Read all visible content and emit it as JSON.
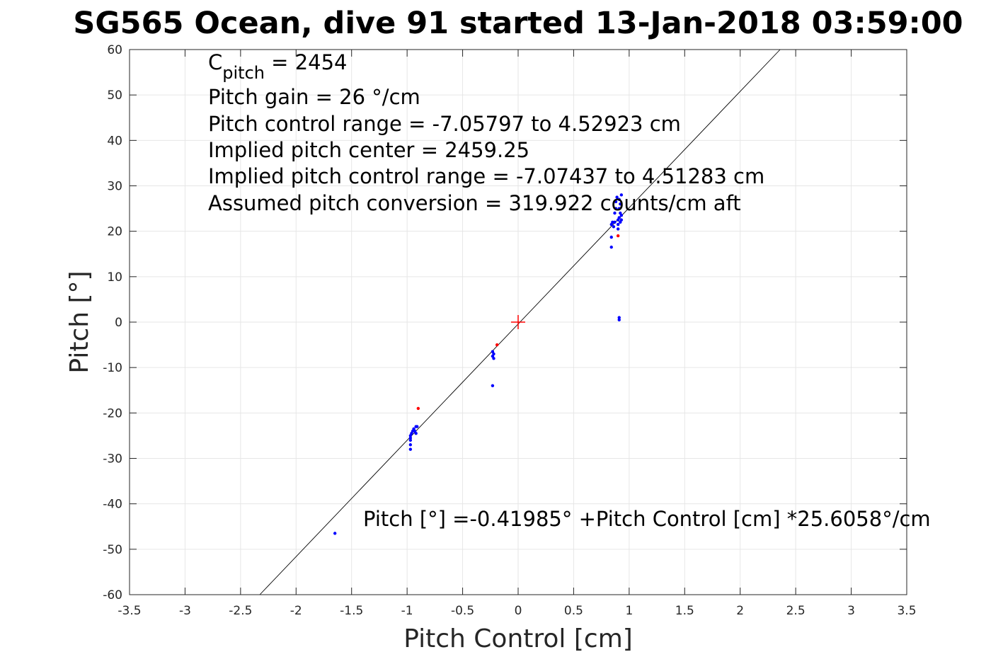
{
  "chart_data": {
    "type": "scatter",
    "title": "SG565 Ocean, dive 91 started 13-Jan-2018 03:59:00",
    "xlabel": "Pitch Control [cm]",
    "ylabel": "Pitch [°]",
    "xlim": [
      -3.5,
      3.5
    ],
    "ylim": [
      -60,
      60
    ],
    "xticks": [
      -3.5,
      -3,
      -2.5,
      -2,
      -1.5,
      -1,
      -0.5,
      0,
      0.5,
      1,
      1.5,
      2,
      2.5,
      3,
      3.5
    ],
    "xtick_labels": [
      "-3.5",
      "-3",
      "-2.5",
      "-2",
      "-1.5",
      "-1",
      "-0.5",
      "0",
      "0.5",
      "1",
      "1.5",
      "2",
      "2.5",
      "3",
      "3.5"
    ],
    "yticks": [
      -60,
      -50,
      -40,
      -30,
      -20,
      -10,
      0,
      10,
      20,
      30,
      40,
      50,
      60
    ],
    "ytick_labels": [
      "-60",
      "-50",
      "-40",
      "-30",
      "-20",
      "-10",
      "0",
      "10",
      "20",
      "30",
      "40",
      "50",
      "60"
    ],
    "grid": true,
    "fit_line": {
      "intercept": -0.41985,
      "slope": 25.6058
    },
    "center_marker": {
      "x": 0,
      "y": 0,
      "color": "#ff0000"
    },
    "series": [
      {
        "color": "#0000ff",
        "points": [
          [
            -1.65,
            -46.5
          ],
          [
            -0.97,
            -28
          ],
          [
            -0.97,
            -27
          ],
          [
            -0.97,
            -26
          ],
          [
            -0.97,
            -25.5
          ],
          [
            -0.97,
            -25
          ],
          [
            -0.96,
            -24.5
          ],
          [
            -0.95,
            -24
          ],
          [
            -0.94,
            -23.5
          ],
          [
            -0.93,
            -24
          ],
          [
            -0.92,
            -23
          ],
          [
            -0.92,
            -24.5
          ],
          [
            -0.91,
            -23
          ],
          [
            -0.23,
            -6.5
          ],
          [
            -0.23,
            -7.5
          ],
          [
            -0.22,
            -8
          ],
          [
            -0.22,
            -7
          ],
          [
            -0.23,
            -14
          ],
          [
            0.84,
            16.5
          ],
          [
            0.84,
            18.7
          ],
          [
            0.84,
            21.5
          ],
          [
            0.85,
            22
          ],
          [
            0.86,
            21
          ],
          [
            0.87,
            22
          ],
          [
            0.87,
            24
          ],
          [
            0.88,
            25
          ],
          [
            0.88,
            26.5
          ],
          [
            0.89,
            27.5
          ],
          [
            0.9,
            20.5
          ],
          [
            0.9,
            21.5
          ],
          [
            0.9,
            22.5
          ],
          [
            0.91,
            23
          ],
          [
            0.91,
            25
          ],
          [
            0.91,
            27
          ],
          [
            0.92,
            22
          ],
          [
            0.92,
            24
          ],
          [
            0.92,
            26
          ],
          [
            0.93,
            28
          ],
          [
            0.93,
            22.5
          ],
          [
            0.93,
            23.5
          ],
          [
            0.91,
            0.5
          ],
          [
            0.91,
            1
          ]
        ]
      },
      {
        "color": "#ff0000",
        "points": [
          [
            -0.9,
            -19
          ],
          [
            -0.19,
            -5
          ],
          [
            0.9,
            19
          ]
        ]
      }
    ],
    "annotations": {
      "cpitch_main": "C",
      "cpitch_sub": "pitch",
      "cpitch_rest": " = 2454",
      "gain": "Pitch gain = 26 °/cm",
      "range": "Pitch control range = -7.05797 to 4.52923 cm",
      "center": "Implied pitch center = 2459.25",
      "implied_range": "Implied pitch control range = -7.07437 to 4.51283 cm",
      "conversion": "Assumed pitch conversion = 319.922 counts/cm aft",
      "fit": "Pitch [°] =-0.41985° +Pitch Control [cm] *25.6058°/cm"
    }
  }
}
